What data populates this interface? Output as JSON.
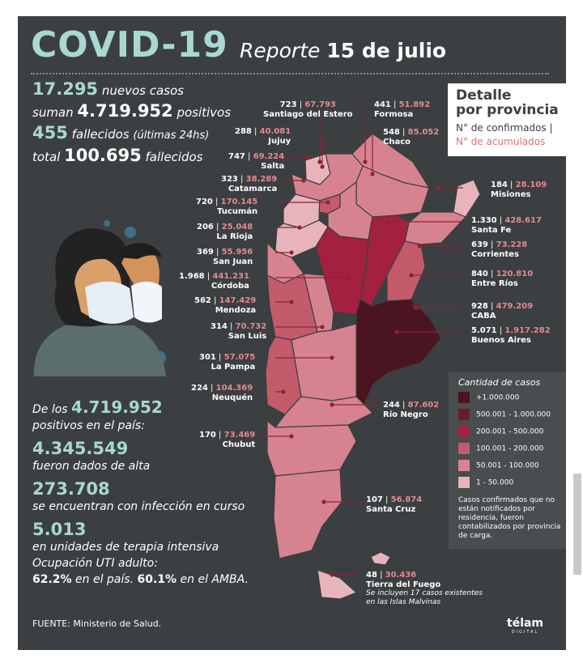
{
  "header": {
    "title": "COVID-19",
    "reporte": "Reporte",
    "date": "15 de julio"
  },
  "stats": {
    "nuevos_num": "17.295",
    "nuevos_txt": "nuevos casos",
    "suman_txt": "suman",
    "positivos_num": "4.719.952",
    "positivos_txt": "positivos",
    "fallecidos_num": "455",
    "fallecidos_txt": "fallecidos",
    "fallecidos_note": "(últimas 24hs)",
    "total_txt": "total",
    "total_num": "100.695",
    "total_suffix": "fallecidos"
  },
  "detail": {
    "title1": "Detalle",
    "title2": "por provincia",
    "line1": "N° de confirmados |",
    "line2": "N° de acumulados"
  },
  "provinces": [
    {
      "id": "santiago",
      "c": "723",
      "a": "67.793",
      "name": "Santiago del Estero"
    },
    {
      "id": "formosa",
      "c": "441",
      "a": "51.892",
      "name": "Formosa"
    },
    {
      "id": "jujuy",
      "c": "288",
      "a": "40.081",
      "name": "Jujuy"
    },
    {
      "id": "chaco",
      "c": "548",
      "a": "85.052",
      "name": "Chaco"
    },
    {
      "id": "salta",
      "c": "747",
      "a": "69.224",
      "name": "Salta"
    },
    {
      "id": "catamarca",
      "c": "323",
      "a": "38.289",
      "name": "Catamarca"
    },
    {
      "id": "misiones",
      "c": "184",
      "a": "28.109",
      "name": "Misiones"
    },
    {
      "id": "tucuman",
      "c": "720",
      "a": "170.145",
      "name": "Tucumán"
    },
    {
      "id": "santafe",
      "c": "1.330",
      "a": "428.617",
      "name": "Santa Fe"
    },
    {
      "id": "larioja",
      "c": "206",
      "a": "25.048",
      "name": "La Rioja"
    },
    {
      "id": "corrientes",
      "c": "639",
      "a": "73.228",
      "name": "Corrientes"
    },
    {
      "id": "sanjuan",
      "c": "369",
      "a": "55.956",
      "name": "San Juan"
    },
    {
      "id": "entrerios",
      "c": "840",
      "a": "120.810",
      "name": "Entre Ríos"
    },
    {
      "id": "cordoba",
      "c": "1.968",
      "a": "441.231",
      "name": "Córdoba"
    },
    {
      "id": "mendoza",
      "c": "562",
      "a": "147.429",
      "name": "Mendoza"
    },
    {
      "id": "caba",
      "c": "928",
      "a": "479.209",
      "name": "CABA"
    },
    {
      "id": "sanluis",
      "c": "314",
      "a": "70.732",
      "name": "San Luis"
    },
    {
      "id": "buenosaires",
      "c": "5.071",
      "a": "1.917.282",
      "name": "Buenos Aires"
    },
    {
      "id": "lapampa",
      "c": "301",
      "a": "57.075",
      "name": "La Pampa"
    },
    {
      "id": "neuquen",
      "c": "224",
      "a": "104.369",
      "name": "Neuquén"
    },
    {
      "id": "rionegro",
      "c": "244",
      "a": "87.602",
      "name": "Río Negro"
    },
    {
      "id": "chubut",
      "c": "170",
      "a": "73.469",
      "name": "Chubut"
    },
    {
      "id": "santacruz",
      "c": "107",
      "a": "56.874",
      "name": "Santa Cruz"
    },
    {
      "id": "tierradelfuego",
      "c": "48",
      "a": "30.436",
      "name": "Tierra del Fuego"
    }
  ],
  "malvinas_note1": "Se incluyen 17 casos existentes",
  "malvinas_note2": "en las Islas Malvinas",
  "legend": {
    "title": "Cantidad de casos",
    "items": [
      {
        "label": "+1.000.000",
        "color": "#4a1420"
      },
      {
        "label": "500.001 - 1.000.000",
        "color": "#6d1a2c"
      },
      {
        "label": "200.001 - 500.000",
        "color": "#a3213f"
      },
      {
        "label": "100.001 - 200.000",
        "color": "#c45b6a"
      },
      {
        "label": "50.001 - 100.000",
        "color": "#d7838f"
      },
      {
        "label": "1 - 50.000",
        "color": "#e8b4bb"
      }
    ],
    "note": "Casos confirmados que no están notificados por residencia, fueron contabilizados por provincia de carga."
  },
  "bottom": {
    "intro1": "De los",
    "intro_num": "4.719.952",
    "intro2": "positivos en el país:",
    "alta_num": "4.345.549",
    "alta_txt": "fueron dados de alta",
    "curso_num": "273.708",
    "curso_txt": "se encuentran con infección en curso",
    "uti_num": "5.013",
    "uti_txt": "en unidades de terapia intensiva",
    "ocup_txt": "Ocupación UTI adulto:",
    "ocup_pais_num": "62.2%",
    "ocup_pais_txt": "en el país.",
    "ocup_amba_num": "60.1%",
    "ocup_amba_txt": "en el AMBA."
  },
  "source": "FUENTE: Ministerio de Salud.",
  "logo": {
    "name": "télam",
    "tag": "DIGITAL"
  }
}
